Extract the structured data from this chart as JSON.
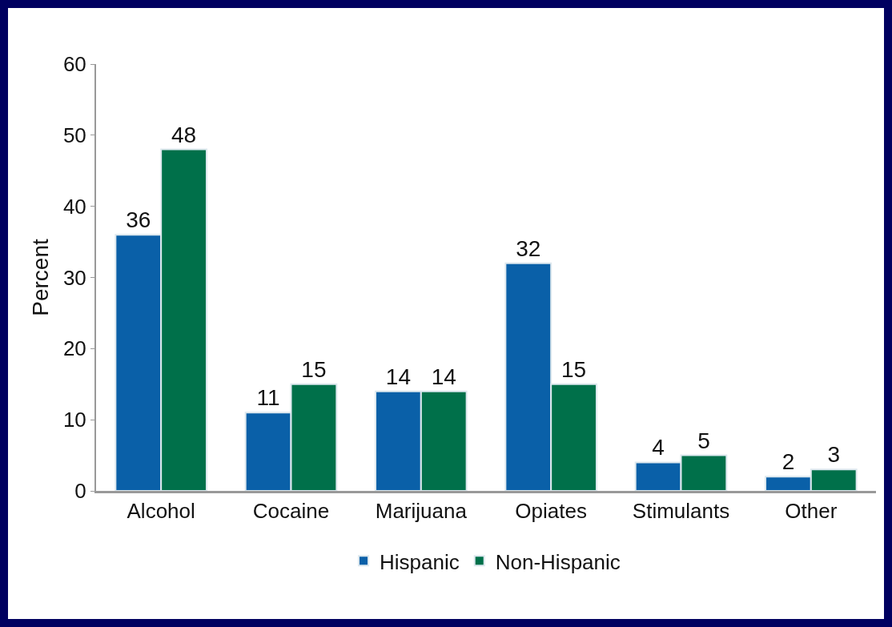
{
  "chart_data": {
    "type": "bar",
    "ylabel": "Percent",
    "categories": [
      "Alcohol",
      "Cocaine",
      "Marijuana",
      "Opiates",
      "Stimulants",
      "Other"
    ],
    "series": [
      {
        "name": "Hispanic",
        "color": "#0a60a8",
        "values": [
          36,
          11,
          14,
          32,
          4,
          2
        ]
      },
      {
        "name": "Non-Hispanic",
        "color": "#00704a",
        "values": [
          48,
          15,
          14,
          15,
          5,
          3
        ]
      }
    ],
    "ylim": [
      0,
      60
    ],
    "yticks": [
      0,
      10,
      20,
      30,
      40,
      50,
      60
    ],
    "grid": false,
    "legend": "bottom",
    "data_labels": true
  }
}
